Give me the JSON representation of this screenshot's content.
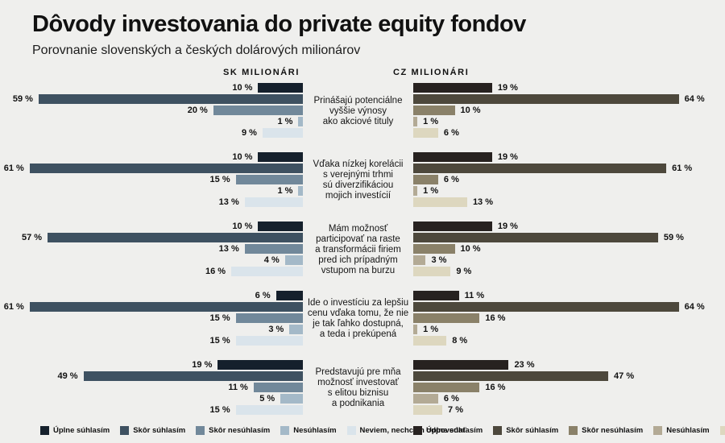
{
  "title": "Dôvody investovania do private equity fondov",
  "subtitle": "Porovnanie slovenských a českých dolárových milionárov",
  "columns": {
    "sk": "SK MILIONÁRI",
    "cz": "CZ MILIONÁRI"
  },
  "value_suffix": " %",
  "colors": {
    "background": "#efefed",
    "sk_palette": [
      "#15202c",
      "#3e5161",
      "#71889a",
      "#a4b9c8",
      "#dae4eb"
    ],
    "cz_palette": [
      "#272220",
      "#4d483c",
      "#8a8169",
      "#b3aa95",
      "#ddd7bf"
    ]
  },
  "legend": [
    "Úplne súhlasím",
    "Skôr súhlasím",
    "Skôr nesúhlasím",
    "Nesúhlasím",
    "Neviem, nechcem odpovedať"
  ],
  "chart_data": {
    "type": "bar",
    "orientation": "horizontal-diverging",
    "unit": "%",
    "answer_scale": [
      "Úplne súhlasím",
      "Skôr súhlasím",
      "Skôr nesúhlasím",
      "Nesúhlasím",
      "Neviem, nechcem odpovedať"
    ],
    "series_names": [
      "SK milionári",
      "CZ milionári"
    ],
    "xlim_sk": [
      0,
      61
    ],
    "xlim_cz": [
      0,
      64
    ],
    "groups": [
      {
        "label": "Prinášajú potenciálne vyššie výnosy ako akciové tituly",
        "label_lines": [
          "Prinášajú potenciálne",
          "vyššie výnosy",
          "ako akciové tituly"
        ],
        "sk": [
          10,
          59,
          20,
          1,
          9
        ],
        "cz": [
          19,
          64,
          10,
          1,
          6
        ]
      },
      {
        "label": "Vďaka nízkej korelácii s verejnými trhmi sú diverzifikáciou mojich investícií",
        "label_lines": [
          "Vďaka nízkej korelácii",
          "s verejnými trhmi",
          "sú diverzifikáciou",
          "mojich investícií"
        ],
        "sk": [
          10,
          61,
          15,
          1,
          13
        ],
        "cz": [
          19,
          61,
          6,
          1,
          13
        ]
      },
      {
        "label": "Mám možnosť participovať na raste a transformácii firiem pred ich prípadným vstupom na burzu",
        "label_lines": [
          "Mám možnosť",
          "participovať na raste",
          "a transformácii firiem",
          "pred ich prípadným",
          "vstupom na burzu"
        ],
        "sk": [
          10,
          57,
          13,
          4,
          16
        ],
        "cz": [
          19,
          59,
          10,
          3,
          9
        ]
      },
      {
        "label": "Ide o investíciu za lepšiu cenu vďaka tomu, že nie je tak ľahko dostupná, a teda i prekúpená",
        "label_lines": [
          "Ide o investíciu za lepšiu",
          "cenu vďaka tomu, že nie",
          "je tak ľahko dostupná,",
          "a teda i prekúpená"
        ],
        "sk": [
          6,
          61,
          15,
          3,
          15
        ],
        "cz": [
          11,
          64,
          16,
          1,
          8
        ]
      },
      {
        "label": "Predstavujú pre mňa možnosť investovať s elitou biznisu a podnikania",
        "label_lines": [
          "Predstavujú pre mňa",
          "možnosť investovať",
          "s elitou biznisu",
          "a podnikania"
        ],
        "sk": [
          19,
          49,
          11,
          5,
          15
        ],
        "cz": [
          23,
          47,
          16,
          6,
          7
        ]
      }
    ]
  }
}
